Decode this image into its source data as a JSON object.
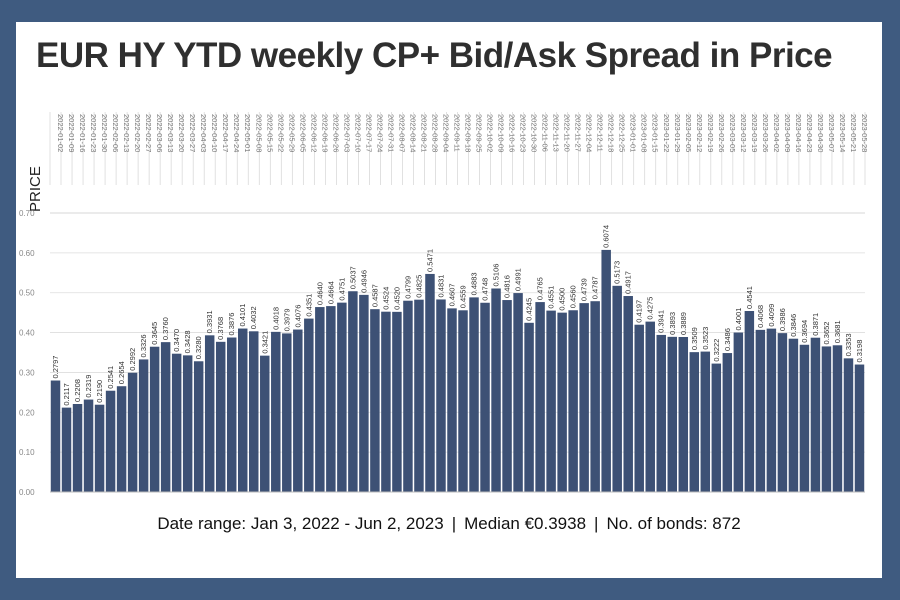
{
  "title": "EUR HY YTD weekly CP+ Bid/Ask Spread in Price",
  "footer": {
    "date_range": "Date range: Jan 3, 2022 - Jun 2, 2023",
    "median": "Median €0.3938",
    "bonds": "No. of bonds: 872",
    "separator": "|"
  },
  "colors": {
    "frame": "#3f5b80",
    "bar": "#3d5175",
    "grid": "#dddddd"
  },
  "chart_data": {
    "type": "bar",
    "ylabel": "PRICE",
    "ylim": [
      0,
      0.7
    ],
    "yticks": [
      "0.00",
      "0.10",
      "0.20",
      "0.30",
      "0.40",
      "0.50",
      "0.60",
      "0.70"
    ],
    "grid": true,
    "categories": [
      "2022-01-02",
      "2022-01-09",
      "2022-01-16",
      "2022-01-23",
      "2022-01-30",
      "2022-02-06",
      "2022-02-13",
      "2022-02-20",
      "2022-02-27",
      "2022-03-06",
      "2022-03-13",
      "2022-03-20",
      "2022-03-27",
      "2022-04-03",
      "2022-04-10",
      "2022-04-17",
      "2022-04-24",
      "2022-05-01",
      "2022-05-08",
      "2022-05-15",
      "2022-05-22",
      "2022-05-29",
      "2022-06-05",
      "2022-06-12",
      "2022-06-19",
      "2022-06-26",
      "2022-07-03",
      "2022-07-10",
      "2022-07-17",
      "2022-07-24",
      "2022-07-31",
      "2022-08-07",
      "2022-08-14",
      "2022-08-21",
      "2022-08-28",
      "2022-09-04",
      "2022-09-11",
      "2022-09-18",
      "2022-09-25",
      "2022-10-02",
      "2022-10-09",
      "2022-10-16",
      "2022-10-23",
      "2022-10-30",
      "2022-11-06",
      "2022-11-13",
      "2022-11-20",
      "2022-11-27",
      "2022-12-04",
      "2022-12-11",
      "2022-12-18",
      "2022-12-25",
      "2023-01-01",
      "2023-01-08",
      "2023-01-15",
      "2023-01-22",
      "2023-01-29",
      "2023-02-05",
      "2023-02-12",
      "2023-02-19",
      "2023-02-26",
      "2023-03-05",
      "2023-03-12",
      "2023-03-19",
      "2023-03-26",
      "2023-04-02",
      "2023-04-09",
      "2023-04-16",
      "2023-04-23",
      "2023-04-30",
      "2023-05-07",
      "2023-05-14",
      "2023-05-21",
      "2023-05-28"
    ],
    "values": [
      0.2797,
      0.2117,
      0.2208,
      0.2319,
      0.219,
      0.2541,
      0.2654,
      0.2992,
      0.3326,
      0.3645,
      0.376,
      0.347,
      0.3428,
      0.328,
      0.3931,
      0.3768,
      0.3876,
      0.4101,
      0.4032,
      0.3421,
      0.4018,
      0.3979,
      0.4076,
      0.4351,
      0.464,
      0.4664,
      0.4751,
      0.5037,
      0.4946,
      0.4587,
      0.4524,
      0.452,
      0.4799,
      0.4825,
      0.5471,
      0.4831,
      0.4607,
      0.4559,
      0.4883,
      0.4748,
      0.5106,
      0.4816,
      0.4991,
      0.4245,
      0.4765,
      0.4551,
      0.45,
      0.456,
      0.4739,
      0.4787,
      0.6074,
      0.5173,
      0.4917,
      0.4197,
      0.4275,
      0.3941,
      0.3893,
      0.3889,
      0.3509,
      0.3523,
      0.3222,
      0.3486,
      0.4001,
      0.4541,
      0.4068,
      0.4099,
      0.3986,
      0.3846,
      0.3694,
      0.3871,
      0.3652,
      0.3681,
      0.3353,
      0.3198
    ],
    "value_labels": [
      "0.2797",
      "0.2117",
      "0.2208",
      "0.2319",
      "0.2190",
      "0.2541",
      "0.2654",
      "0.2992",
      "0.3326",
      "0.3645",
      "0.3760",
      "0.3470",
      "0.3428",
      "0.3280",
      "0.3931",
      "0.3768",
      "0.3876",
      "0.4101",
      "0.4032",
      "0.3421",
      "0.4018",
      "0.3979",
      "0.4076",
      "0.4351",
      "0.4640",
      "0.4664",
      "0.4751",
      "0.5037",
      "0.4946",
      "0.4587",
      "0.4524",
      "0.4520",
      "0.4799",
      "0.4825",
      "0.5471",
      "0.4831",
      "0.4607",
      "0.4559",
      "0.4883",
      "0.4748",
      "0.5106",
      "0.4816",
      "0.4991",
      "0.4245",
      "0.4765",
      "0.4551",
      "0.4500",
      "0.4560",
      "0.4739",
      "0.4787",
      "0.6074",
      "0.5173",
      "0.4917",
      "0.4197",
      "0.4275",
      "0.3941",
      "0.3893",
      "0.3889",
      "0.3509",
      "0.3523",
      "0.3222",
      "0.3486",
      "0.4001",
      "0.4541",
      "0.4068",
      "0.4099",
      "0.3986",
      "0.3846",
      "0.3694",
      "0.3871",
      "0.3652",
      "0.3681",
      "0.3353",
      "0.3198"
    ]
  }
}
